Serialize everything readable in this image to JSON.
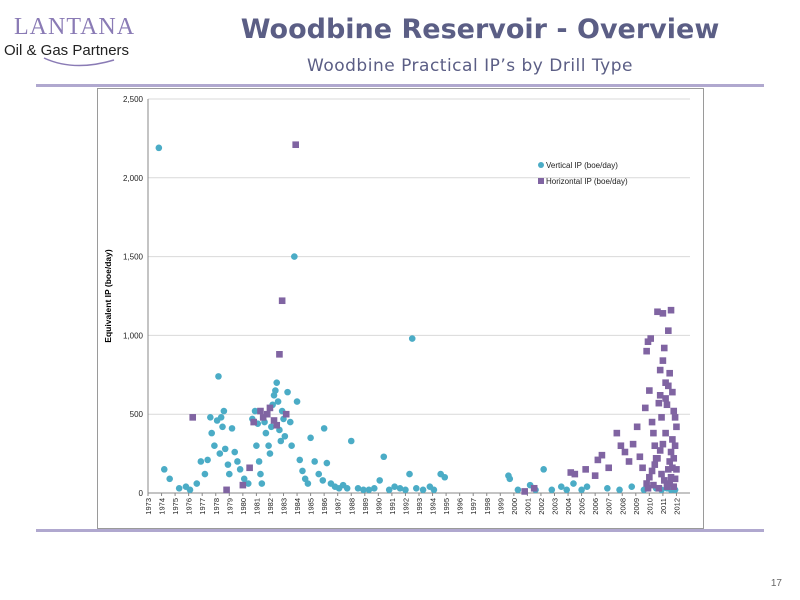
{
  "header": {
    "logo_name": "LANTANA",
    "logo_sub": "Oil & Gas Partners",
    "title": "Woodbine Reservoir - Overview",
    "subtitle": "Woodbine Practical IP’s by Drill Type"
  },
  "footer": {
    "page_number": "17"
  },
  "colors": {
    "accent": "#b0a8cf",
    "title": "#5b5e85",
    "vertical": "#4bacc6",
    "horizontal": "#8064a2"
  },
  "chart_data": {
    "type": "scatter",
    "title": "",
    "xlabel": "",
    "ylabel": "Equivalent IP (boe/day)",
    "xlim": [
      1973,
      2013
    ],
    "ylim": [
      0,
      2500
    ],
    "y_ticks": [
      0,
      500,
      1000,
      1500,
      2000,
      2500
    ],
    "y_tick_labels": [
      "0",
      "500",
      "1,000",
      "1,500",
      "2,000",
      "2,500"
    ],
    "x_tick_labels": [
      "1973",
      "1974",
      "1975",
      "1976",
      "1977",
      "1978",
      "1979",
      "1980",
      "1981",
      "1982",
      "1983",
      "1984",
      "1985",
      "1986",
      "1987",
      "1988",
      "1989",
      "1990",
      "1991",
      "1992",
      "1993",
      "1994",
      "1995",
      "1996",
      "1997",
      "1998",
      "1999",
      "2000",
      "2001",
      "2002",
      "2003",
      "2004",
      "2005",
      "2006",
      "2007",
      "2008",
      "2009",
      "2010",
      "2011",
      "2012"
    ],
    "grid": "horizontal",
    "legend": "top-right",
    "series": [
      {
        "name": "Vertical IP (boe/day)",
        "marker": "circle",
        "color": "#4bacc6",
        "points": [
          [
            1973.8,
            2190
          ],
          [
            1974.2,
            150
          ],
          [
            1974.6,
            90
          ],
          [
            1975.3,
            30
          ],
          [
            1975.8,
            40
          ],
          [
            1976.1,
            20
          ],
          [
            1976.6,
            60
          ],
          [
            1976.9,
            200
          ],
          [
            1977.2,
            120
          ],
          [
            1977.4,
            210
          ],
          [
            1977.6,
            480
          ],
          [
            1977.7,
            380
          ],
          [
            1977.9,
            300
          ],
          [
            1978.1,
            460
          ],
          [
            1978.2,
            740
          ],
          [
            1978.3,
            250
          ],
          [
            1978.4,
            480
          ],
          [
            1978.5,
            420
          ],
          [
            1978.6,
            520
          ],
          [
            1978.7,
            280
          ],
          [
            1978.9,
            180
          ],
          [
            1979.0,
            120
          ],
          [
            1979.2,
            410
          ],
          [
            1979.4,
            260
          ],
          [
            1979.6,
            200
          ],
          [
            1979.8,
            150
          ],
          [
            1980.1,
            90
          ],
          [
            1980.4,
            60
          ],
          [
            1980.7,
            470
          ],
          [
            1980.9,
            520
          ],
          [
            1981.0,
            300
          ],
          [
            1981.1,
            440
          ],
          [
            1981.2,
            200
          ],
          [
            1981.3,
            120
          ],
          [
            1981.4,
            60
          ],
          [
            1981.6,
            450
          ],
          [
            1981.7,
            380
          ],
          [
            1981.8,
            500
          ],
          [
            1981.9,
            300
          ],
          [
            1982.0,
            250
          ],
          [
            1982.1,
            420
          ],
          [
            1982.2,
            560
          ],
          [
            1982.3,
            620
          ],
          [
            1982.4,
            650
          ],
          [
            1982.5,
            700
          ],
          [
            1982.6,
            580
          ],
          [
            1982.7,
            400
          ],
          [
            1982.8,
            330
          ],
          [
            1982.9,
            520
          ],
          [
            1983.0,
            470
          ],
          [
            1983.1,
            360
          ],
          [
            1983.3,
            640
          ],
          [
            1983.5,
            450
          ],
          [
            1983.6,
            300
          ],
          [
            1983.8,
            1500
          ],
          [
            1984.0,
            580
          ],
          [
            1984.2,
            210
          ],
          [
            1984.4,
            140
          ],
          [
            1984.6,
            90
          ],
          [
            1984.8,
            60
          ],
          [
            1985.0,
            350
          ],
          [
            1985.3,
            200
          ],
          [
            1985.6,
            120
          ],
          [
            1985.9,
            80
          ],
          [
            1986.0,
            410
          ],
          [
            1986.2,
            190
          ],
          [
            1986.5,
            60
          ],
          [
            1986.8,
            40
          ],
          [
            1987.1,
            30
          ],
          [
            1987.4,
            50
          ],
          [
            1987.7,
            30
          ],
          [
            1988.0,
            330
          ],
          [
            1988.5,
            30
          ],
          [
            1988.9,
            20
          ],
          [
            1989.3,
            20
          ],
          [
            1989.7,
            30
          ],
          [
            1990.1,
            80
          ],
          [
            1990.4,
            230
          ],
          [
            1990.8,
            20
          ],
          [
            1991.2,
            40
          ],
          [
            1991.6,
            30
          ],
          [
            1992.0,
            20
          ],
          [
            1992.3,
            120
          ],
          [
            1992.5,
            980
          ],
          [
            1992.8,
            30
          ],
          [
            1993.3,
            20
          ],
          [
            1993.8,
            40
          ],
          [
            1994.1,
            20
          ],
          [
            1994.6,
            120
          ],
          [
            1994.9,
            100
          ],
          [
            1999.6,
            110
          ],
          [
            1999.7,
            90
          ],
          [
            2000.3,
            20
          ],
          [
            2001.2,
            50
          ],
          [
            2001.6,
            20
          ],
          [
            2002.2,
            150
          ],
          [
            2002.8,
            20
          ],
          [
            2003.5,
            40
          ],
          [
            2003.9,
            20
          ],
          [
            2004.4,
            60
          ],
          [
            2005.0,
            20
          ],
          [
            2005.4,
            40
          ],
          [
            2006.9,
            30
          ],
          [
            2007.8,
            20
          ],
          [
            2008.7,
            40
          ],
          [
            2009.6,
            20
          ],
          [
            2010.5,
            30
          ],
          [
            2010.9,
            20
          ],
          [
            2011.3,
            30
          ],
          [
            2011.6,
            20
          ],
          [
            2011.8,
            40
          ],
          [
            2011.9,
            20
          ]
        ]
      },
      {
        "name": "Horizontal IP (boe/day)",
        "marker": "square",
        "color": "#8064a2",
        "points": [
          [
            1976.3,
            480
          ],
          [
            1978.8,
            20
          ],
          [
            1980.0,
            50
          ],
          [
            1980.5,
            160
          ],
          [
            1980.8,
            450
          ],
          [
            1981.3,
            520
          ],
          [
            1981.5,
            480
          ],
          [
            1981.8,
            500
          ],
          [
            1982.0,
            540
          ],
          [
            1982.3,
            460
          ],
          [
            1982.5,
            430
          ],
          [
            1982.7,
            880
          ],
          [
            1982.9,
            1220
          ],
          [
            1983.2,
            500
          ],
          [
            1983.9,
            2210
          ],
          [
            2000.8,
            10
          ],
          [
            2001.5,
            30
          ],
          [
            2004.2,
            130
          ],
          [
            2004.5,
            120
          ],
          [
            2005.3,
            150
          ],
          [
            2006.0,
            110
          ],
          [
            2006.2,
            210
          ],
          [
            2006.5,
            240
          ],
          [
            2007.0,
            160
          ],
          [
            2007.6,
            380
          ],
          [
            2007.9,
            300
          ],
          [
            2008.2,
            260
          ],
          [
            2008.5,
            200
          ],
          [
            2008.8,
            310
          ],
          [
            2009.1,
            420
          ],
          [
            2009.3,
            230
          ],
          [
            2009.5,
            160
          ],
          [
            2009.7,
            540
          ],
          [
            2009.8,
            900
          ],
          [
            2009.9,
            960
          ],
          [
            2010.0,
            650
          ],
          [
            2010.1,
            980
          ],
          [
            2010.2,
            450
          ],
          [
            2010.3,
            380
          ],
          [
            2010.4,
            300
          ],
          [
            2010.5,
            220
          ],
          [
            2010.6,
            1150
          ],
          [
            2010.7,
            570
          ],
          [
            2010.8,
            620
          ],
          [
            2010.9,
            480
          ],
          [
            2011.0,
            1140
          ],
          [
            2011.1,
            920
          ],
          [
            2011.2,
            700
          ],
          [
            2011.3,
            560
          ],
          [
            2011.4,
            1030
          ],
          [
            2011.5,
            760
          ],
          [
            2011.6,
            1160
          ],
          [
            2011.7,
            640
          ],
          [
            2011.8,
            520
          ],
          [
            2011.9,
            480
          ],
          [
            2012.0,
            420
          ],
          [
            2011.7,
            340
          ],
          [
            2011.6,
            260
          ],
          [
            2011.5,
            200
          ],
          [
            2011.4,
            150
          ],
          [
            2011.2,
            380
          ],
          [
            2011.0,
            310
          ],
          [
            2010.8,
            270
          ],
          [
            2010.6,
            220
          ],
          [
            2010.4,
            180
          ],
          [
            2010.2,
            140
          ],
          [
            2010.0,
            100
          ],
          [
            2009.8,
            60
          ],
          [
            2011.9,
            300
          ],
          [
            2011.8,
            220
          ],
          [
            2011.7,
            160
          ],
          [
            2011.6,
            100
          ],
          [
            2011.5,
            60
          ],
          [
            2011.3,
            40
          ],
          [
            2011.1,
            80
          ],
          [
            2010.9,
            120
          ],
          [
            2012.0,
            150
          ],
          [
            2011.9,
            90
          ],
          [
            2011.8,
            40
          ],
          [
            2010.7,
            30
          ],
          [
            2010.3,
            50
          ],
          [
            2009.9,
            30
          ],
          [
            2011.4,
            680
          ],
          [
            2011.2,
            600
          ],
          [
            2010.8,
            780
          ],
          [
            2011.0,
            840
          ]
        ]
      }
    ]
  }
}
